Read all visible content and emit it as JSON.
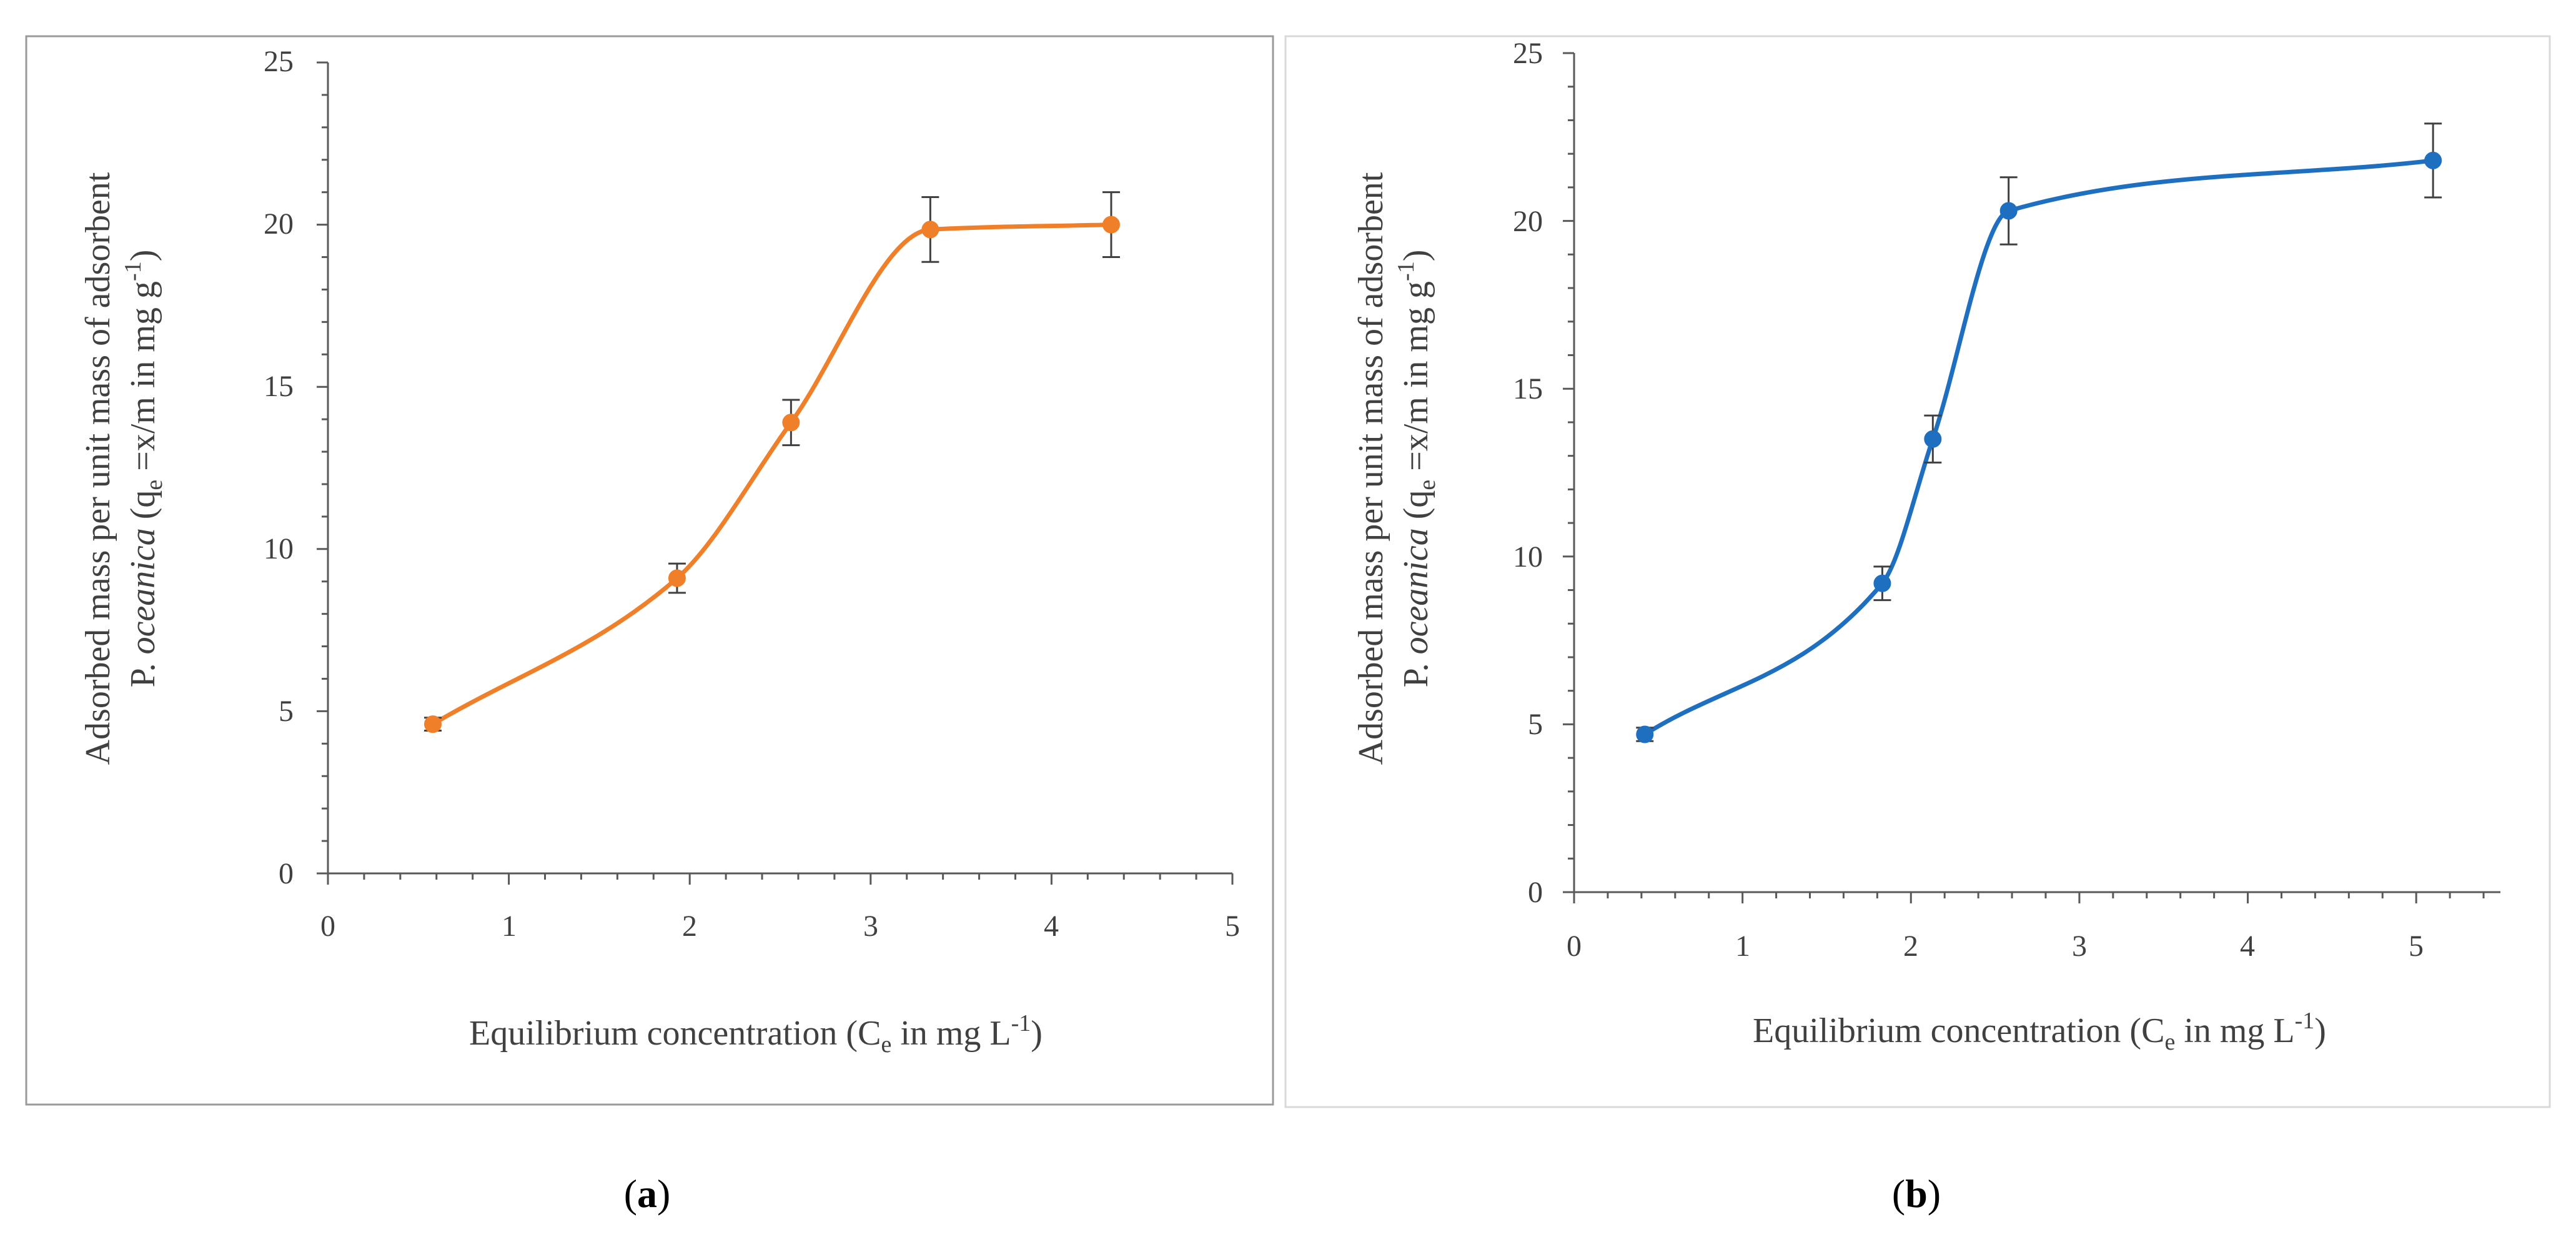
{
  "chart_data": [
    {
      "type": "scatter",
      "panel_label": "a",
      "color": "#F07F2A",
      "series": [
        {
          "name": "",
          "x": [
            0.58,
            1.93,
            2.56,
            3.33,
            4.33
          ],
          "y": [
            4.6,
            9.1,
            13.9,
            19.85,
            20.0
          ],
          "error": [
            0.2,
            0.45,
            0.7,
            1.0,
            1.0
          ]
        }
      ],
      "smooth_line": true,
      "xlim": [
        0,
        5
      ],
      "ylim": [
        0,
        25
      ],
      "xticks": [
        "0",
        "1",
        "2",
        "3",
        "4",
        "5"
      ],
      "yticks": [
        "0",
        "5",
        "10",
        "15",
        "20",
        "25"
      ],
      "ylabel_line1": "Adsorbed mass per unit mass of adsorbent",
      "ylabel_line2_prefix": "P. ",
      "ylabel_line2_italic": "oceanica",
      "ylabel_line2_q": " (q",
      "ylabel_line2_sub": "e",
      "ylabel_line2_mid": " =x/m in mg g",
      "ylabel_line2_sup": "-1",
      "ylabel_line2_end": ")",
      "xlabel_prefix": "Equilibrium concentration  (C",
      "xlabel_sub": "e",
      "xlabel_mid": " in mg L",
      "xlabel_sup": "-1",
      "xlabel_end": ")"
    },
    {
      "type": "scatter",
      "panel_label": "b",
      "color": "#1F6FC0",
      "series": [
        {
          "name": "",
          "x": [
            0.42,
            1.83,
            2.13,
            2.58,
            5.1
          ],
          "y": [
            4.7,
            9.2,
            13.5,
            20.3,
            21.8
          ],
          "error": [
            0.2,
            0.5,
            0.7,
            1.0,
            1.1
          ]
        }
      ],
      "smooth_line": true,
      "xlim": [
        0,
        5.5
      ],
      "ylim": [
        0,
        25
      ],
      "xticks": [
        "0",
        "1",
        "2",
        "3",
        "4",
        "5"
      ],
      "yticks": [
        "0",
        "5",
        "10",
        "15",
        "20",
        "25"
      ],
      "ylabel_line1": "Adsorbed mass per unit mass of adsorbent",
      "ylabel_line2_prefix": "P. ",
      "ylabel_line2_italic": "oceanica",
      "ylabel_line2_q": " (q",
      "ylabel_line2_sub": "e",
      "ylabel_line2_mid": " =x/m in mg g",
      "ylabel_line2_sup": "-1",
      "ylabel_line2_end": ")",
      "xlabel_prefix": "Equilibrium concentration  (C",
      "xlabel_sub": "e",
      "xlabel_mid": " in mg L",
      "xlabel_sup": "-1",
      "xlabel_end": ")"
    }
  ],
  "captions": {
    "a": {
      "open": "(",
      "letter": "a",
      "close": ")"
    },
    "b": {
      "open": "(",
      "letter": "b",
      "close": ")"
    }
  }
}
